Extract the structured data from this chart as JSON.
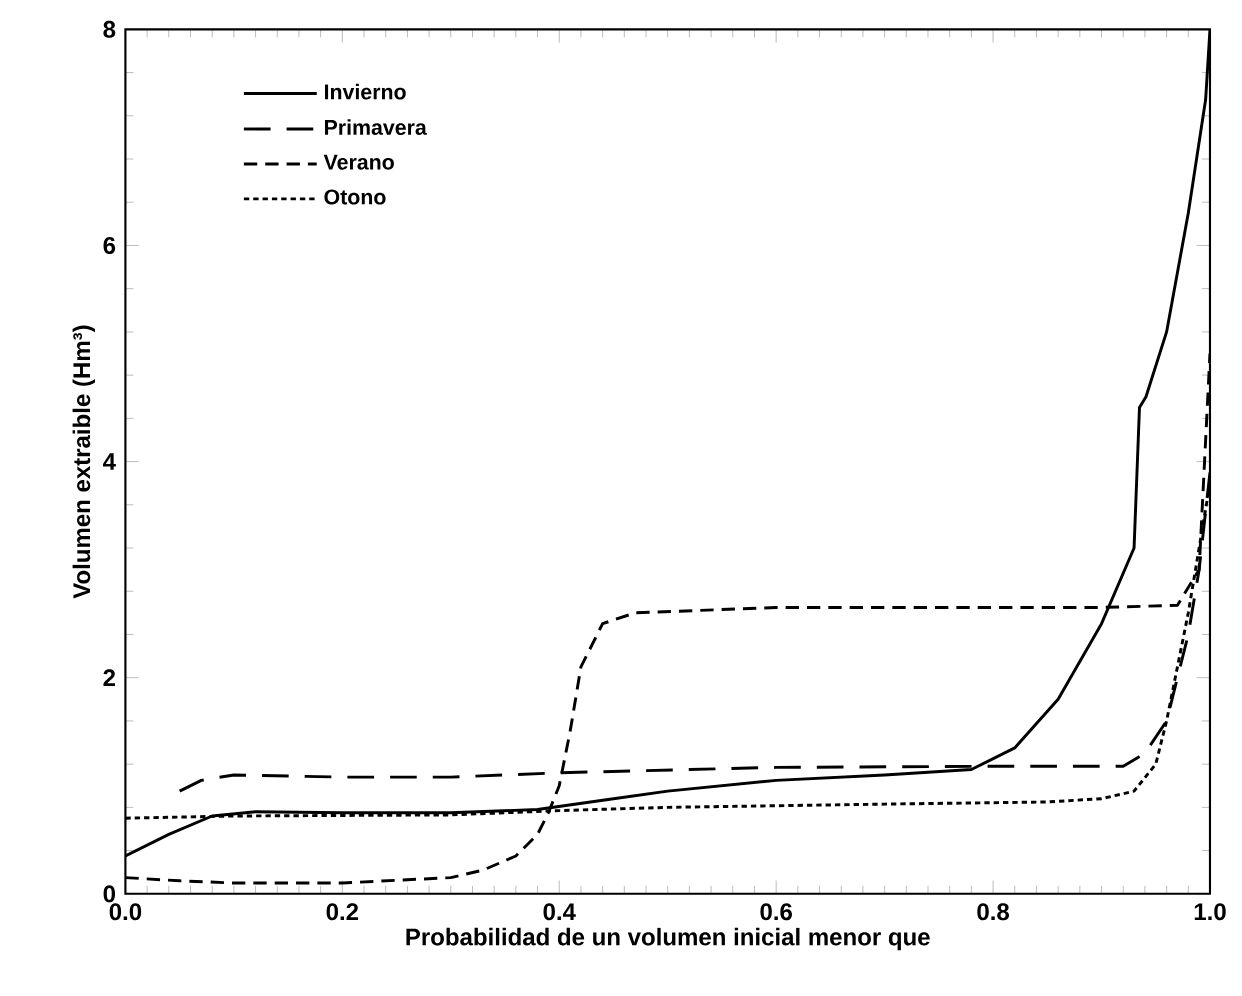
{
  "chart_data": {
    "type": "line",
    "xlabel": "Probabilidad de un volumen inicial menor que",
    "ylabel": "Volumen extraible (Hm³)",
    "xlim": [
      0,
      1
    ],
    "ylim": [
      0,
      8
    ],
    "xticks": [
      {
        "value": 0,
        "label": "0.0"
      },
      {
        "value": 0.2,
        "label": "0.2"
      },
      {
        "value": 0.4,
        "label": "0.4"
      },
      {
        "value": 0.6,
        "label": "0.6"
      },
      {
        "value": 0.8,
        "label": "0.8"
      },
      {
        "value": 1,
        "label": "1.0"
      }
    ],
    "yticks": [
      0,
      2,
      4,
      6,
      8
    ],
    "legend": "top left",
    "grid": false,
    "marker": "none",
    "series": [
      {
        "name": "Invierno",
        "color": "#000000",
        "line_style": "solid",
        "x": [
          0,
          0.04,
          0.08,
          0.12,
          0.2,
          0.3,
          0.38,
          0.45,
          0.5,
          0.6,
          0.7,
          0.78,
          0.82,
          0.86,
          0.9,
          0.93,
          0.935,
          0.941,
          0.96,
          0.98,
          0.996,
          1.0
        ],
        "values": [
          0.35,
          0.55,
          0.72,
          0.76,
          0.75,
          0.75,
          0.78,
          0.88,
          0.95,
          1.05,
          1.1,
          1.15,
          1.35,
          1.8,
          2.5,
          3.2,
          4.5,
          4.6,
          5.2,
          6.3,
          7.35,
          8.0
        ]
      },
      {
        "name": "Primavera",
        "color": "#000000",
        "line_style": "dashed",
        "x": [
          0.05,
          0.07,
          0.1,
          0.2,
          0.3,
          0.4,
          0.6,
          0.8,
          0.92,
          0.94,
          0.96,
          0.98,
          0.99,
          1.0
        ],
        "values": [
          0.95,
          1.05,
          1.1,
          1.08,
          1.08,
          1.12,
          1.17,
          1.18,
          1.18,
          1.3,
          1.6,
          2.4,
          3.0,
          3.9
        ]
      },
      {
        "name": "Verano",
        "color": "#000000",
        "line_style": "dashed",
        "x": [
          0,
          0.05,
          0.1,
          0.2,
          0.3,
          0.33,
          0.36,
          0.38,
          0.39,
          0.4,
          0.41,
          0.42,
          0.44,
          0.47,
          0.6,
          0.8,
          0.9,
          0.97,
          0.99,
          1.0
        ],
        "values": [
          0.15,
          0.12,
          0.1,
          0.1,
          0.15,
          0.22,
          0.35,
          0.55,
          0.75,
          1.0,
          1.5,
          2.1,
          2.5,
          2.6,
          2.65,
          2.65,
          2.65,
          2.67,
          3.0,
          5.0
        ]
      },
      {
        "name": "Otono",
        "color": "#000000",
        "line_style": "dotted",
        "x": [
          0,
          0.1,
          0.3,
          0.4,
          0.5,
          0.7,
          0.85,
          0.9,
          0.93,
          0.95,
          0.96,
          0.97,
          0.98,
          0.99,
          1.0
        ],
        "values": [
          0.7,
          0.72,
          0.73,
          0.77,
          0.8,
          0.83,
          0.85,
          0.88,
          0.95,
          1.2,
          1.6,
          2.1,
          2.6,
          3.2,
          3.8
        ]
      }
    ]
  }
}
